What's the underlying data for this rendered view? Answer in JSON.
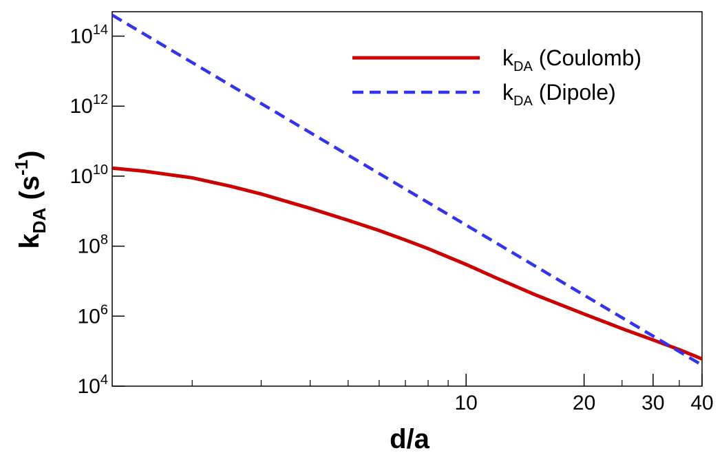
{
  "chart_data": {
    "type": "line",
    "title": "",
    "xlabel": "d/a",
    "ylabel": {
      "base": "k",
      "sub": "DA",
      "open": " (s",
      "sup": "-1",
      "close": ")"
    },
    "x_scale": "log",
    "y_scale": "log",
    "xlim": [
      1.25,
      40
    ],
    "ylim": [
      10000,
      500000000000000
    ],
    "x_ticks_major": [
      {
        "value": 10,
        "label": "10"
      },
      {
        "value": 20,
        "label": "20"
      },
      {
        "value": 30,
        "label": "30"
      },
      {
        "value": 40,
        "label": "40"
      }
    ],
    "x_ticks_minor": [
      2,
      3,
      4,
      5,
      6,
      7,
      8,
      9,
      25,
      35
    ],
    "y_ticks_major": [
      {
        "value": 10000,
        "base": "10",
        "exp": "4"
      },
      {
        "value": 1000000,
        "base": "10",
        "exp": "6"
      },
      {
        "value": 100000000,
        "base": "10",
        "exp": "8"
      },
      {
        "value": 10000000000,
        "base": "10",
        "exp": "10"
      },
      {
        "value": 1000000000000,
        "base": "10",
        "exp": "12"
      },
      {
        "value": 100000000000000,
        "base": "10",
        "exp": "14"
      }
    ],
    "grid": false,
    "legend_position": "top-right",
    "series": [
      {
        "name": "Coulomb",
        "legend_base": "k",
        "legend_sub": "DA",
        "legend_rest": " (Coulomb)",
        "color": "#cc0000",
        "style": "solid",
        "x": [
          1.25,
          1.5,
          2,
          2.5,
          3,
          4,
          5,
          6,
          7,
          8,
          10,
          12,
          15,
          20,
          25,
          30,
          35,
          40
        ],
        "y": [
          17000000000,
          14000000000,
          9000000000,
          5200000000,
          3100000000,
          1200000000,
          550000000,
          280000000,
          150000000,
          85000000,
          30000000,
          12000000,
          4100000,
          1150000,
          440000,
          210000,
          110000,
          60000
        ]
      },
      {
        "name": "Dipole",
        "legend_base": "k",
        "legend_sub": "DA",
        "legend_rest": " (Dipole)",
        "color": "#3333ee",
        "style": "dashed",
        "x": [
          1.25,
          40
        ],
        "y": [
          400000000000000,
          40000
        ]
      }
    ]
  }
}
